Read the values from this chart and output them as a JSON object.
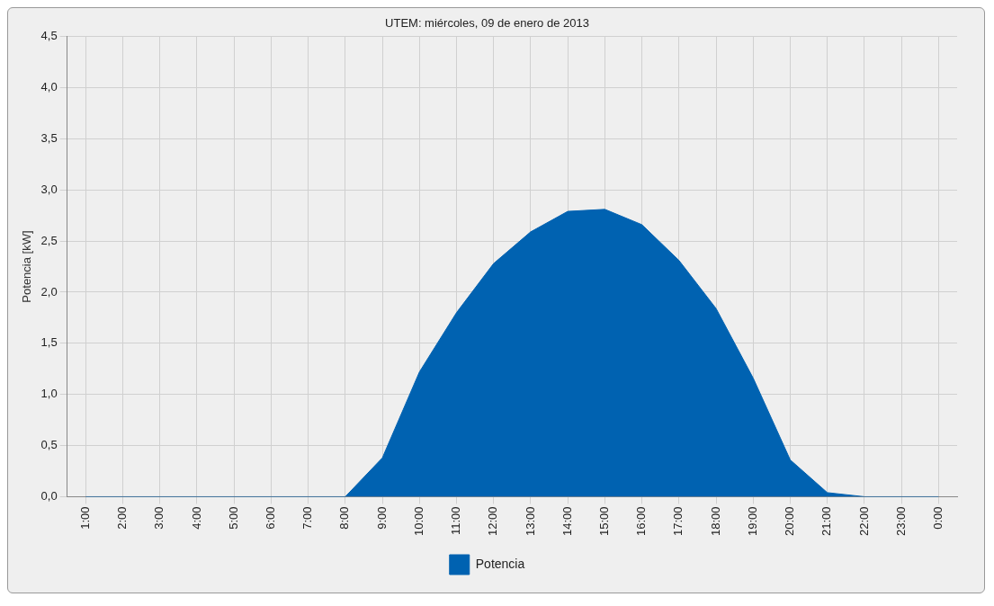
{
  "chart_data": {
    "type": "area",
    "title": "UTEM: miércoles, 09 de enero de 2013",
    "ylabel": "Potencia [kW]",
    "categories": [
      "1:00",
      "2:00",
      "3:00",
      "4:00",
      "5:00",
      "6:00",
      "7:00",
      "8:00",
      "9:00",
      "10:00",
      "11:00",
      "12:00",
      "13:00",
      "14:00",
      "15:00",
      "16:00",
      "17:00",
      "18:00",
      "19:00",
      "20:00",
      "21:00",
      "22:00",
      "23:00",
      "0:00"
    ],
    "series": [
      {
        "name": "Potencia",
        "color": "#0062b1",
        "values": [
          0,
          0,
          0,
          0,
          0,
          0,
          0,
          0,
          0.38,
          1.22,
          1.8,
          2.28,
          2.59,
          2.79,
          2.81,
          2.66,
          2.31,
          1.84,
          1.16,
          0.36,
          0.04,
          0,
          0,
          0
        ]
      }
    ],
    "ylim": [
      0,
      4.5
    ],
    "yticks": [
      {
        "value": 0,
        "label": "0,0"
      },
      {
        "value": 0.5,
        "label": "0,5"
      },
      {
        "value": 1,
        "label": "1,0"
      },
      {
        "value": 1.5,
        "label": "1,5"
      },
      {
        "value": 2,
        "label": "2,0"
      },
      {
        "value": 2.5,
        "label": "2,5"
      },
      {
        "value": 3,
        "label": "3,0"
      },
      {
        "value": 3.5,
        "label": "3,5"
      },
      {
        "value": 4,
        "label": "4,0"
      },
      {
        "value": 4.5,
        "label": "4,5"
      }
    ],
    "grid": true,
    "legend": "bottom",
    "marker": "none"
  }
}
